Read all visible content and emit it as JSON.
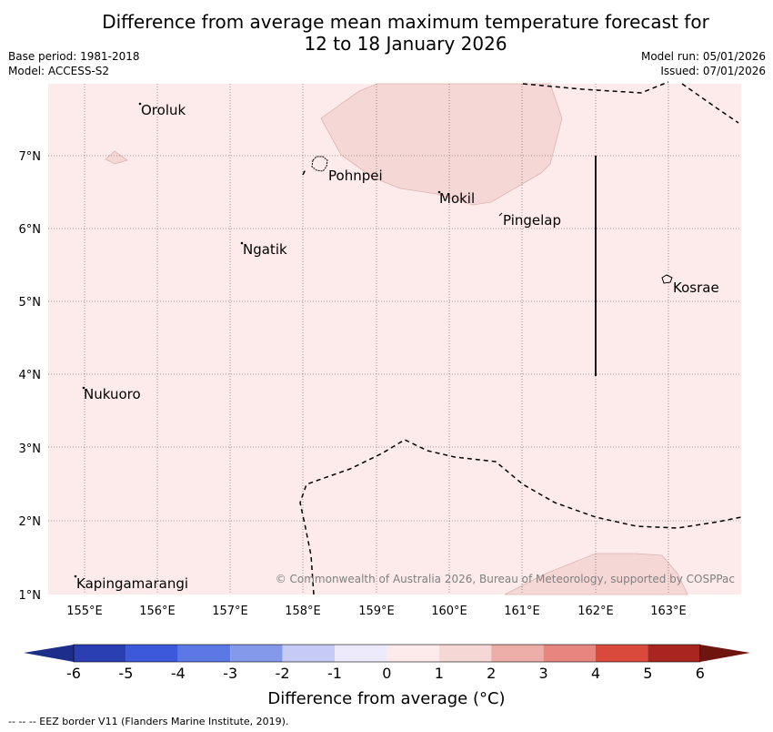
{
  "title_line1": "Difference from average mean maximum temperature forecast for",
  "title_line2": "12 to 18 January 2026",
  "base_period": "Base period: 1981-2018",
  "model": "Model: ACCESS-S2",
  "model_run": "Model run: 05/01/2026",
  "issued": "Issued: 07/01/2026",
  "places": {
    "oroluk": "Oroluk",
    "pohnpei": "Pohnpei",
    "mokil": "Mokil",
    "pingelap": "Pingelap",
    "ngatik": "Ngatik",
    "kosrae": "Kosrae",
    "nukuoro": "Nukuoro",
    "kapingamarangi": "Kapingamarangi"
  },
  "lon_ticks": [
    "155°E",
    "156°E",
    "157°E",
    "158°E",
    "159°E",
    "160°E",
    "161°E",
    "162°E",
    "163°E"
  ],
  "lat_ticks": [
    "1°N",
    "2°N",
    "3°N",
    "4°N",
    "5°N",
    "6°N",
    "7°N"
  ],
  "credit": "© Commonwealth of Australia 2026, Bureau of Meteorology, supported by COSPPac",
  "colorbar": {
    "ticks": [
      "-6",
      "-5",
      "-4",
      "-3",
      "-2",
      "-1",
      "0",
      "1",
      "2",
      "3",
      "4",
      "5",
      "6"
    ],
    "colors": [
      "#1c2d8a",
      "#2a40b2",
      "#3c59dc",
      "#5b78e4",
      "#8499ea",
      "#c5cbf4",
      "#eceafb",
      "#fcebea",
      "#f5d7d5",
      "#edaeaa",
      "#e7867f",
      "#d94a3d",
      "#a8261f",
      "#6e1510"
    ],
    "label": "Difference from average (°C)"
  },
  "footnote": "--  --  -- EEZ border V11 (Flanders Marine Institute, 2019)."
}
